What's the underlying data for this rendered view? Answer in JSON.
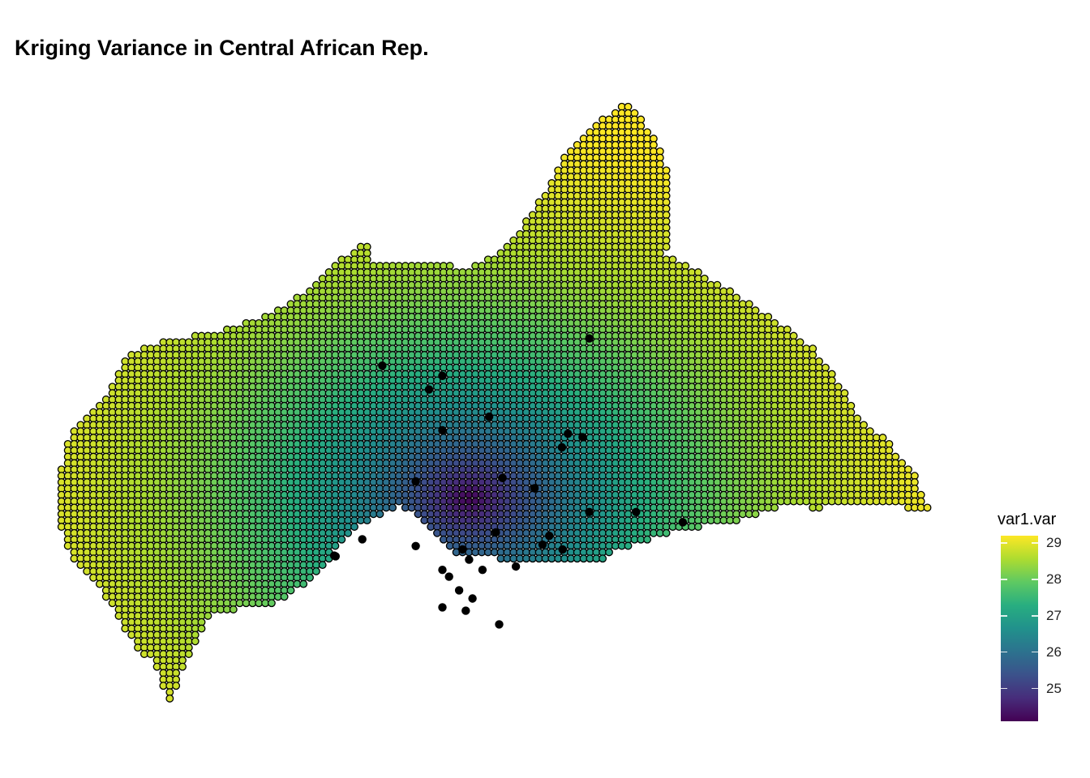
{
  "chart_data": {
    "type": "map-grid",
    "title": "Kriging Variance in Central African Rep.",
    "fill_variable": "var1.var",
    "color_scale": "viridis",
    "color_range": [
      24.1,
      29.2
    ],
    "legend": {
      "title": "var1.var",
      "position": "bottom-right",
      "ticks": [
        29,
        28,
        27,
        26,
        25
      ]
    },
    "minimum_variance_center": {
      "lon": 20.6,
      "lat": 5.2
    },
    "region_outline_lonlat": [
      [
        14.4,
        4.95
      ],
      [
        14.45,
        5.4
      ],
      [
        14.55,
        5.9
      ],
      [
        14.65,
        6.2
      ],
      [
        14.8,
        6.35
      ],
      [
        15.15,
        6.65
      ],
      [
        15.45,
        7.3
      ],
      [
        15.8,
        7.45
      ],
      [
        16.3,
        7.55
      ],
      [
        16.8,
        7.65
      ],
      [
        17.3,
        7.8
      ],
      [
        17.8,
        8.0
      ],
      [
        18.25,
        8.3
      ],
      [
        18.6,
        8.65
      ],
      [
        18.85,
        8.85
      ],
      [
        19.1,
        9.0
      ],
      [
        19.1,
        8.65
      ],
      [
        19.8,
        8.65
      ],
      [
        20.6,
        8.6
      ],
      [
        21.1,
        8.85
      ],
      [
        21.5,
        9.35
      ],
      [
        21.75,
        9.75
      ],
      [
        22.1,
        10.35
      ],
      [
        22.5,
        10.7
      ],
      [
        22.9,
        11.0
      ],
      [
        23.1,
        10.9
      ],
      [
        23.45,
        10.35
      ],
      [
        23.6,
        9.95
      ],
      [
        23.6,
        9.5
      ],
      [
        23.55,
        8.8
      ],
      [
        24.0,
        8.55
      ],
      [
        24.45,
        8.3
      ],
      [
        24.9,
        8.0
      ],
      [
        25.3,
        7.75
      ],
      [
        25.75,
        7.4
      ],
      [
        26.1,
        6.95
      ],
      [
        26.45,
        6.4
      ],
      [
        26.9,
        6.0
      ],
      [
        27.25,
        5.6
      ],
      [
        27.5,
        5.05
      ],
      [
        27.2,
        5.05
      ],
      [
        26.6,
        5.15
      ],
      [
        25.8,
        5.05
      ],
      [
        25.3,
        5.1
      ],
      [
        24.6,
        4.85
      ],
      [
        23.8,
        4.75
      ],
      [
        23.2,
        4.55
      ],
      [
        22.8,
        4.45
      ],
      [
        22.5,
        4.25
      ],
      [
        21.6,
        4.25
      ],
      [
        20.8,
        4.35
      ],
      [
        20.4,
        4.4
      ],
      [
        19.6,
        5.1
      ],
      [
        18.8,
        4.7
      ],
      [
        18.35,
        4.1
      ],
      [
        17.7,
        3.65
      ],
      [
        17.0,
        3.55
      ],
      [
        16.7,
        3.45
      ],
      [
        16.45,
        2.95
      ],
      [
        16.1,
        2.2
      ],
      [
        15.9,
        2.8
      ],
      [
        15.6,
        3.0
      ],
      [
        15.3,
        3.55
      ],
      [
        15.0,
        4.0
      ],
      [
        14.65,
        4.25
      ],
      [
        14.55,
        4.6
      ],
      [
        14.4,
        4.95
      ]
    ],
    "observation_points_lonlat": [
      [
        18.58,
        4.36
      ],
      [
        19.3,
        7.15
      ],
      [
        20.2,
        7.0
      ],
      [
        20.0,
        6.8
      ],
      [
        20.9,
        6.4
      ],
      [
        20.2,
        6.2
      ],
      [
        22.4,
        7.55
      ],
      [
        22.08,
        6.15
      ],
      [
        22.3,
        6.1
      ],
      [
        21.99,
        5.95
      ],
      [
        19.8,
        5.45
      ],
      [
        21.1,
        5.5
      ],
      [
        21.58,
        5.35
      ],
      [
        22.4,
        5.0
      ],
      [
        23.1,
        5.0
      ],
      [
        23.8,
        4.85
      ],
      [
        19.0,
        4.6
      ],
      [
        20.5,
        4.45
      ],
      [
        21.0,
        4.7
      ],
      [
        21.8,
        4.65
      ],
      [
        21.7,
        4.52
      ],
      [
        22.0,
        4.45
      ],
      [
        20.6,
        4.3
      ],
      [
        20.8,
        4.15
      ],
      [
        21.3,
        4.2
      ],
      [
        20.2,
        4.15
      ],
      [
        20.3,
        4.05
      ],
      [
        20.45,
        3.85
      ],
      [
        20.65,
        3.73
      ],
      [
        20.2,
        3.6
      ],
      [
        20.55,
        3.55
      ],
      [
        21.05,
        3.35
      ],
      [
        19.8,
        4.5
      ],
      [
        18.6,
        4.35
      ]
    ]
  }
}
